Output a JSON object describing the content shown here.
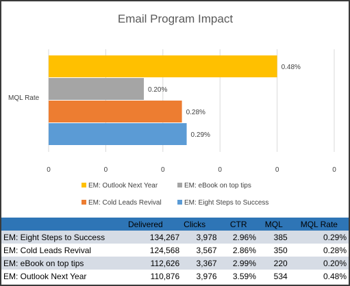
{
  "chart_data": {
    "type": "bar",
    "orientation": "horizontal",
    "title": "Email Program Impact",
    "category": "MQL Rate",
    "series": [
      {
        "name": "EM: Outlook Next Year",
        "value": 0.48,
        "label": "0.48%",
        "color": "#ffc000"
      },
      {
        "name": "EM: eBook on top tips",
        "value": 0.2,
        "label": "0.20%",
        "color": "#a5a5a5"
      },
      {
        "name": "EM: Cold Leads Revival",
        "value": 0.28,
        "label": "0.28%",
        "color": "#ed7d31"
      },
      {
        "name": "EM: Eight Steps to Success",
        "value": 0.29,
        "label": "0.29%",
        "color": "#5b9bd5"
      }
    ],
    "x_ticks": [
      "0",
      "0",
      "0",
      "0",
      "0",
      "0"
    ],
    "xlim": [
      0,
      0.6
    ],
    "grid": true,
    "legend": "bottom"
  },
  "table": {
    "headers": [
      "",
      "Delivered",
      "Clicks",
      "CTR",
      "MQL",
      "MQL Rate"
    ],
    "rows": [
      [
        "EM: Eight Steps to Success",
        "134,267",
        "3,978",
        "2.96%",
        "385",
        "0.29%"
      ],
      [
        "EM: Cold Leads Revival",
        "124,568",
        "3,567",
        "2.86%",
        "350",
        "0.28%"
      ],
      [
        "EM: eBook on top tips",
        "112,626",
        "3,367",
        "2.99%",
        "220",
        "0.20%"
      ],
      [
        "EM: Outlook Next Year",
        "110,876",
        "3,976",
        "3.59%",
        "534",
        "0.48%"
      ]
    ]
  }
}
